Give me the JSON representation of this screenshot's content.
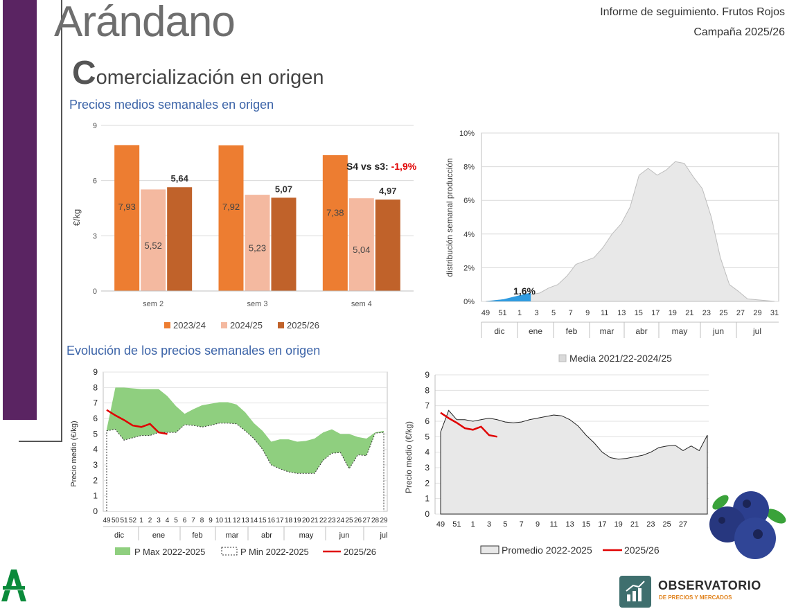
{
  "header": {
    "title": "Arándano",
    "subtitle_initial": "C",
    "subtitle_rest": "omercialización en origen",
    "report_line1": "Informe de seguimiento. Frutos Rojos",
    "report_line2": "Campaña 2025/26"
  },
  "sections": {
    "weekly_prices": "Precios medios semanales en origen",
    "evolution": "Evolución de los precios semanales en origen"
  },
  "colors": {
    "c2023": "#ed7d31",
    "c2024": "#f4b9a0",
    "c2025": "#c0622a",
    "accent_red": "#e00000",
    "area_green": "#8fcf7f",
    "area_grey": "#e8e8e8",
    "distribution_blue": "#2f9be0",
    "sidebar": "#5a2462"
  },
  "chart_data": [
    {
      "type": "bar",
      "categories": [
        "sem 2",
        "sem 3",
        "sem 4"
      ],
      "series": [
        {
          "name": "2023/24",
          "values": [
            7.93,
            7.92,
            7.38
          ],
          "labels": [
            "7,93",
            "7,92",
            "7,38"
          ]
        },
        {
          "name": "2024/25",
          "values": [
            5.52,
            5.23,
            5.04
          ],
          "labels": [
            "5,52",
            "5,23",
            "5,04"
          ]
        },
        {
          "name": "2025/26",
          "values": [
            5.64,
            5.07,
            4.97
          ],
          "labels": [
            "5,64",
            "5,07",
            "4,97"
          ]
        }
      ],
      "ylabel": "€/kg",
      "ylim": [
        0,
        9
      ],
      "yticks": [
        "0",
        "3",
        "6",
        "9"
      ],
      "annotation_label": "S4 vs s3: ",
      "annotation_value": "-1,9%",
      "legend_position": "bottom"
    },
    {
      "type": "area",
      "ylabel": "distribución semanal producción",
      "ylim": [
        0,
        10
      ],
      "yticks": [
        "0%",
        "2%",
        "4%",
        "6%",
        "8%",
        "10%"
      ],
      "xticks": [
        "49",
        "51",
        "1",
        "3",
        "5",
        "7",
        "9",
        "11",
        "13",
        "15",
        "17",
        "19",
        "21",
        "23",
        "25",
        "27",
        "29",
        "31"
      ],
      "months": [
        "dic",
        "ene",
        "feb",
        "mar",
        "abr",
        "may",
        "jun",
        "jul"
      ],
      "highlight_label": "1,6%",
      "legend": "Media 2021/22-2024/25",
      "values": [
        0,
        0.05,
        0.1,
        0.2,
        0.3,
        0.4,
        0.5,
        0.8,
        1.0,
        1.5,
        2.2,
        2.4,
        2.6,
        3.2,
        4.0,
        4.6,
        5.6,
        7.5,
        7.9,
        7.5,
        7.8,
        8.3,
        8.2,
        7.4,
        6.7,
        5.0,
        2.6,
        1.0,
        0.6,
        0.15,
        0.1,
        0.05,
        0
      ],
      "highlight_values": [
        0,
        0.05,
        0.1,
        0.2,
        0.3,
        0.4
      ]
    },
    {
      "type": "area",
      "ylabel": "Precio medio (€/kg)",
      "ylim": [
        0,
        9
      ],
      "yticks": [
        "0",
        "1",
        "2",
        "3",
        "4",
        "5",
        "6",
        "7",
        "8",
        "9"
      ],
      "xticks": [
        "49",
        "50",
        "51",
        "52",
        "1",
        "2",
        "3",
        "4",
        "5",
        "6",
        "7",
        "8",
        "9",
        "10",
        "11",
        "12",
        "13",
        "14",
        "15",
        "16",
        "17",
        "18",
        "19",
        "20",
        "21",
        "22",
        "23",
        "24",
        "25",
        "26",
        "27",
        "28",
        "29"
      ],
      "months": [
        "dic",
        "ene",
        "feb",
        "mar",
        "abr",
        "may",
        "jun",
        "jul"
      ],
      "series": [
        {
          "name": "P Max 2022-2025",
          "values": [
            5.3,
            8.0,
            8.0,
            7.95,
            7.9,
            7.9,
            7.9,
            7.45,
            6.8,
            6.3,
            6.6,
            6.85,
            6.95,
            7.05,
            7.05,
            6.9,
            6.4,
            5.7,
            5.2,
            4.5,
            4.65,
            4.65,
            4.5,
            4.55,
            4.7,
            5.1,
            5.3,
            5.0,
            5.0,
            4.8,
            4.7,
            5.1,
            5.2
          ]
        },
        {
          "name": "P Min 2022-2025",
          "values": [
            5.2,
            5.3,
            4.6,
            4.75,
            4.9,
            4.9,
            5.1,
            5.1,
            5.1,
            5.6,
            5.55,
            5.45,
            5.55,
            5.7,
            5.7,
            5.65,
            5.2,
            4.7,
            4.0,
            3.0,
            2.75,
            2.55,
            2.45,
            2.45,
            2.45,
            3.3,
            3.75,
            3.8,
            2.75,
            3.65,
            3.6,
            5.05,
            5.1
          ]
        },
        {
          "name": "2025/26",
          "values": [
            6.55,
            6.2,
            5.9,
            5.55,
            5.45,
            5.65,
            5.1,
            5.0
          ]
        }
      ]
    },
    {
      "type": "area",
      "ylabel": "Precio medio (€/kg)",
      "ylim": [
        0,
        9
      ],
      "yticks": [
        "0",
        "1",
        "2",
        "3",
        "4",
        "5",
        "6",
        "7",
        "8",
        "9"
      ],
      "xticks": [
        "49",
        "51",
        "1",
        "3",
        "5",
        "7",
        "9",
        "11",
        "13",
        "15",
        "17",
        "19",
        "21",
        "23",
        "25",
        "27"
      ],
      "series": [
        {
          "name": "Promedio 2022-2025",
          "values": [
            5.3,
            6.7,
            6.1,
            6.1,
            6.0,
            6.1,
            6.2,
            6.1,
            5.95,
            5.9,
            5.95,
            6.1,
            6.2,
            6.3,
            6.4,
            6.35,
            6.1,
            5.7,
            5.1,
            4.6,
            4.0,
            3.65,
            3.55,
            3.6,
            3.7,
            3.8,
            4.0,
            4.3,
            4.4,
            4.45,
            4.1,
            4.4,
            4.1,
            5.1
          ]
        },
        {
          "name": "2025/26",
          "values": [
            6.55,
            6.2,
            5.9,
            5.55,
            5.45,
            5.65,
            5.1,
            5.0
          ]
        }
      ]
    }
  ],
  "logos": {
    "observatorio_title": "OBSERVATORIO",
    "observatorio_sub": "DE PRECIOS Y MERCADOS"
  }
}
